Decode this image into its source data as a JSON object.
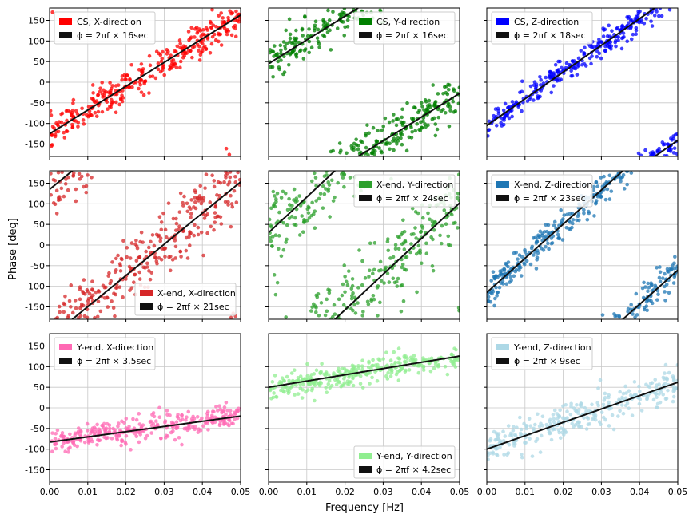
{
  "figure": {
    "xlabel": "Frequency [Hz]",
    "ylabel": "Phase [deg]"
  },
  "chart_data": [
    {
      "type": "scatter",
      "panel": "top-left",
      "series_label": "CS, X-direction",
      "fit_label": "ϕ = 2πf × 16sec",
      "color": "#ff0000",
      "delay_s": 16,
      "offset_deg": -125,
      "noise_deg": 20,
      "xlim": [
        0,
        0.05
      ],
      "ylim": [
        -180,
        180
      ],
      "xticks": [
        "0.00",
        "0.01",
        "0.02",
        "0.03",
        "0.04",
        "0.05"
      ],
      "yticks": [
        "-150",
        "-100",
        "-50",
        "0",
        "50",
        "100",
        "150"
      ],
      "legend": "top-left"
    },
    {
      "type": "scatter",
      "panel": "top-center",
      "series_label": "CS, Y-direction",
      "fit_label": "ϕ = 2πf × 16sec",
      "color": "#008000",
      "delay_s": 16,
      "offset_deg": 45,
      "noise_deg": 25,
      "xlim": [
        0,
        0.05
      ],
      "ylim": [
        -180,
        180
      ],
      "xticks": [
        "0.00",
        "0.01",
        "0.02",
        "0.03",
        "0.04",
        "0.05"
      ],
      "yticks": [
        "-150",
        "-100",
        "-50",
        "0",
        "50",
        "100",
        "150"
      ],
      "legend": "top-right"
    },
    {
      "type": "scatter",
      "panel": "top-right",
      "series_label": "CS, Z-direction",
      "fit_label": "ϕ = 2πf × 18sec",
      "color": "#0000ff",
      "delay_s": 18,
      "offset_deg": -105,
      "noise_deg": 15,
      "xlim": [
        0,
        0.05
      ],
      "ylim": [
        -180,
        180
      ],
      "xticks": [
        "0.00",
        "0.01",
        "0.02",
        "0.03",
        "0.04",
        "0.05"
      ],
      "yticks": [
        "-150",
        "-100",
        "-50",
        "0",
        "50",
        "100",
        "150"
      ],
      "legend": "top-left"
    },
    {
      "type": "scatter",
      "panel": "middle-left",
      "series_label": "X-end, X-direction",
      "fit_label": "ϕ = 2πf × 21sec",
      "color": "#d62728",
      "delay_s": 21,
      "offset_deg": 135,
      "noise_deg": 40,
      "xlim": [
        0,
        0.05
      ],
      "ylim": [
        -180,
        180
      ],
      "xticks": [
        "0.00",
        "0.01",
        "0.02",
        "0.03",
        "0.04",
        "0.05"
      ],
      "yticks": [
        "-150",
        "-100",
        "-50",
        "0",
        "50",
        "100",
        "150"
      ],
      "legend": "bottom-right"
    },
    {
      "type": "scatter",
      "panel": "middle-center",
      "series_label": "X-end, Y-direction",
      "fit_label": "ϕ = 2πf × 24sec",
      "color": "#2ca02c",
      "delay_s": 24,
      "offset_deg": 30,
      "noise_deg": 50,
      "xlim": [
        0,
        0.05
      ],
      "ylim": [
        -180,
        180
      ],
      "xticks": [
        "0.00",
        "0.01",
        "0.02",
        "0.03",
        "0.04",
        "0.05"
      ],
      "yticks": [
        "-150",
        "-100",
        "-50",
        "0",
        "50",
        "100",
        "150"
      ],
      "legend": "top-right"
    },
    {
      "type": "scatter",
      "panel": "middle-right",
      "series_label": "X-end, Z-direction",
      "fit_label": "ϕ = 2πf × 23sec",
      "color": "#1f77b4",
      "delay_s": 23,
      "offset_deg": -115,
      "noise_deg": 20,
      "xlim": [
        0,
        0.05
      ],
      "ylim": [
        -180,
        180
      ],
      "xticks": [
        "0.00",
        "0.01",
        "0.02",
        "0.03",
        "0.04",
        "0.05"
      ],
      "yticks": [
        "-150",
        "-100",
        "-50",
        "0",
        "50",
        "100",
        "150"
      ],
      "legend": "top-left"
    },
    {
      "type": "scatter",
      "panel": "bottom-left",
      "series_label": "Y-end, X-direction",
      "fit_label": "ϕ = 2πf × 3.5sec",
      "color": "#ff69b4",
      "delay_s": 3.5,
      "offset_deg": -83,
      "noise_deg": 15,
      "xlim": [
        0,
        0.05
      ],
      "ylim": [
        -180,
        180
      ],
      "xticks": [
        "0.00",
        "0.01",
        "0.02",
        "0.03",
        "0.04",
        "0.05"
      ],
      "yticks": [
        "-150",
        "-100",
        "-50",
        "0",
        "50",
        "100",
        "150"
      ],
      "legend": "top-left"
    },
    {
      "type": "scatter",
      "panel": "bottom-center",
      "series_label": "Y-end, Y-direction",
      "fit_label": "ϕ = 2πf × 4.2sec",
      "color": "#90ee90",
      "delay_s": 4.2,
      "offset_deg": 50,
      "noise_deg": 15,
      "xlim": [
        0,
        0.05
      ],
      "ylim": [
        -180,
        180
      ],
      "xticks": [
        "0.00",
        "0.01",
        "0.02",
        "0.03",
        "0.04",
        "0.05"
      ],
      "yticks": [
        "-150",
        "-100",
        "-50",
        "0",
        "50",
        "100",
        "150"
      ],
      "legend": "bottom-right"
    },
    {
      "type": "scatter",
      "panel": "bottom-right",
      "series_label": "Y-end, Z-direction",
      "fit_label": "ϕ = 2πf × 9sec",
      "color": "#add8e6",
      "delay_s": 9,
      "offset_deg": -100,
      "noise_deg": 20,
      "xlim": [
        0,
        0.05
      ],
      "ylim": [
        -180,
        180
      ],
      "xticks": [
        "0.00",
        "0.01",
        "0.02",
        "0.03",
        "0.04",
        "0.05"
      ],
      "yticks": [
        "-150",
        "-100",
        "-50",
        "0",
        "50",
        "100",
        "150"
      ],
      "legend": "top-left"
    }
  ]
}
